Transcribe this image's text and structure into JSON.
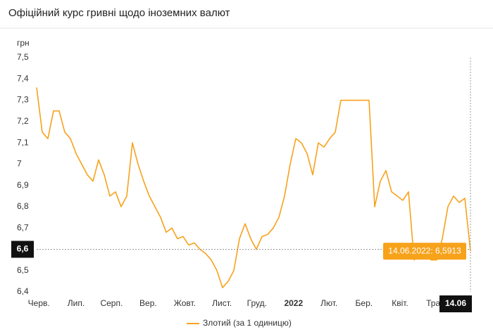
{
  "chart_data": {
    "type": "line",
    "title": "Офіційний курс гривні щодо іноземних валют",
    "y_label": "грн",
    "ylim": [
      6.4,
      7.5
    ],
    "yticks": [
      {
        "value": 6.4,
        "label": "6,4"
      },
      {
        "value": 6.5,
        "label": "6,5"
      },
      {
        "value": 6.6,
        "label": "6,6"
      },
      {
        "value": 6.7,
        "label": "6,7"
      },
      {
        "value": 6.8,
        "label": "6,8"
      },
      {
        "value": 6.9,
        "label": "6,9"
      },
      {
        "value": 7.0,
        "label": "7"
      },
      {
        "value": 7.1,
        "label": "7,1"
      },
      {
        "value": 7.2,
        "label": "7,2"
      },
      {
        "value": 7.3,
        "label": "7,3"
      },
      {
        "value": 7.4,
        "label": "7,4"
      },
      {
        "value": 7.5,
        "label": "7,5"
      }
    ],
    "xlim": [
      0,
      77
    ],
    "xticks": [
      {
        "value": 0.4,
        "label": "Черв."
      },
      {
        "value": 7,
        "label": "Лип."
      },
      {
        "value": 13.3,
        "label": "Серп."
      },
      {
        "value": 19.8,
        "label": "Вер."
      },
      {
        "value": 26.3,
        "label": "Жовт."
      },
      {
        "value": 32.9,
        "label": "Лист."
      },
      {
        "value": 39.1,
        "label": "Груд."
      },
      {
        "value": 45.6,
        "label": "2022"
      },
      {
        "value": 51.9,
        "label": "Лют."
      },
      {
        "value": 58.1,
        "label": "Бер."
      },
      {
        "value": 64.5,
        "label": "Квіт."
      },
      {
        "value": 71,
        "label": "Трав."
      }
    ],
    "series": [
      {
        "name": "Злотий (за 1 одиницю)",
        "color": "#f7a21b",
        "values": [
          7.36,
          7.15,
          7.12,
          7.25,
          7.25,
          7.15,
          7.12,
          7.05,
          7.0,
          6.95,
          6.92,
          7.02,
          6.95,
          6.85,
          6.87,
          6.8,
          6.85,
          7.1,
          7.0,
          6.92,
          6.85,
          6.8,
          6.75,
          6.68,
          6.7,
          6.65,
          6.66,
          6.62,
          6.63,
          6.6,
          6.58,
          6.55,
          6.5,
          6.42,
          6.45,
          6.5,
          6.65,
          6.72,
          6.65,
          6.6,
          6.66,
          6.67,
          6.7,
          6.75,
          6.85,
          7.0,
          7.12,
          7.1,
          7.05,
          6.95,
          7.1,
          7.08,
          7.12,
          7.15,
          7.3,
          7.3,
          7.3,
          7.3,
          7.3,
          7.3,
          6.8,
          6.92,
          6.97,
          6.87,
          6.85,
          6.83,
          6.87,
          6.55,
          6.58,
          6.58,
          6.55,
          6.55,
          6.65,
          6.8,
          6.85,
          6.82,
          6.84,
          6.5913
        ]
      }
    ],
    "crosshair": {
      "x": {
        "value": 77,
        "label": "14.06"
      },
      "y": {
        "value": 6.6,
        "label": "6,6"
      }
    },
    "tooltip": "14.06.2022: 6,5913"
  }
}
